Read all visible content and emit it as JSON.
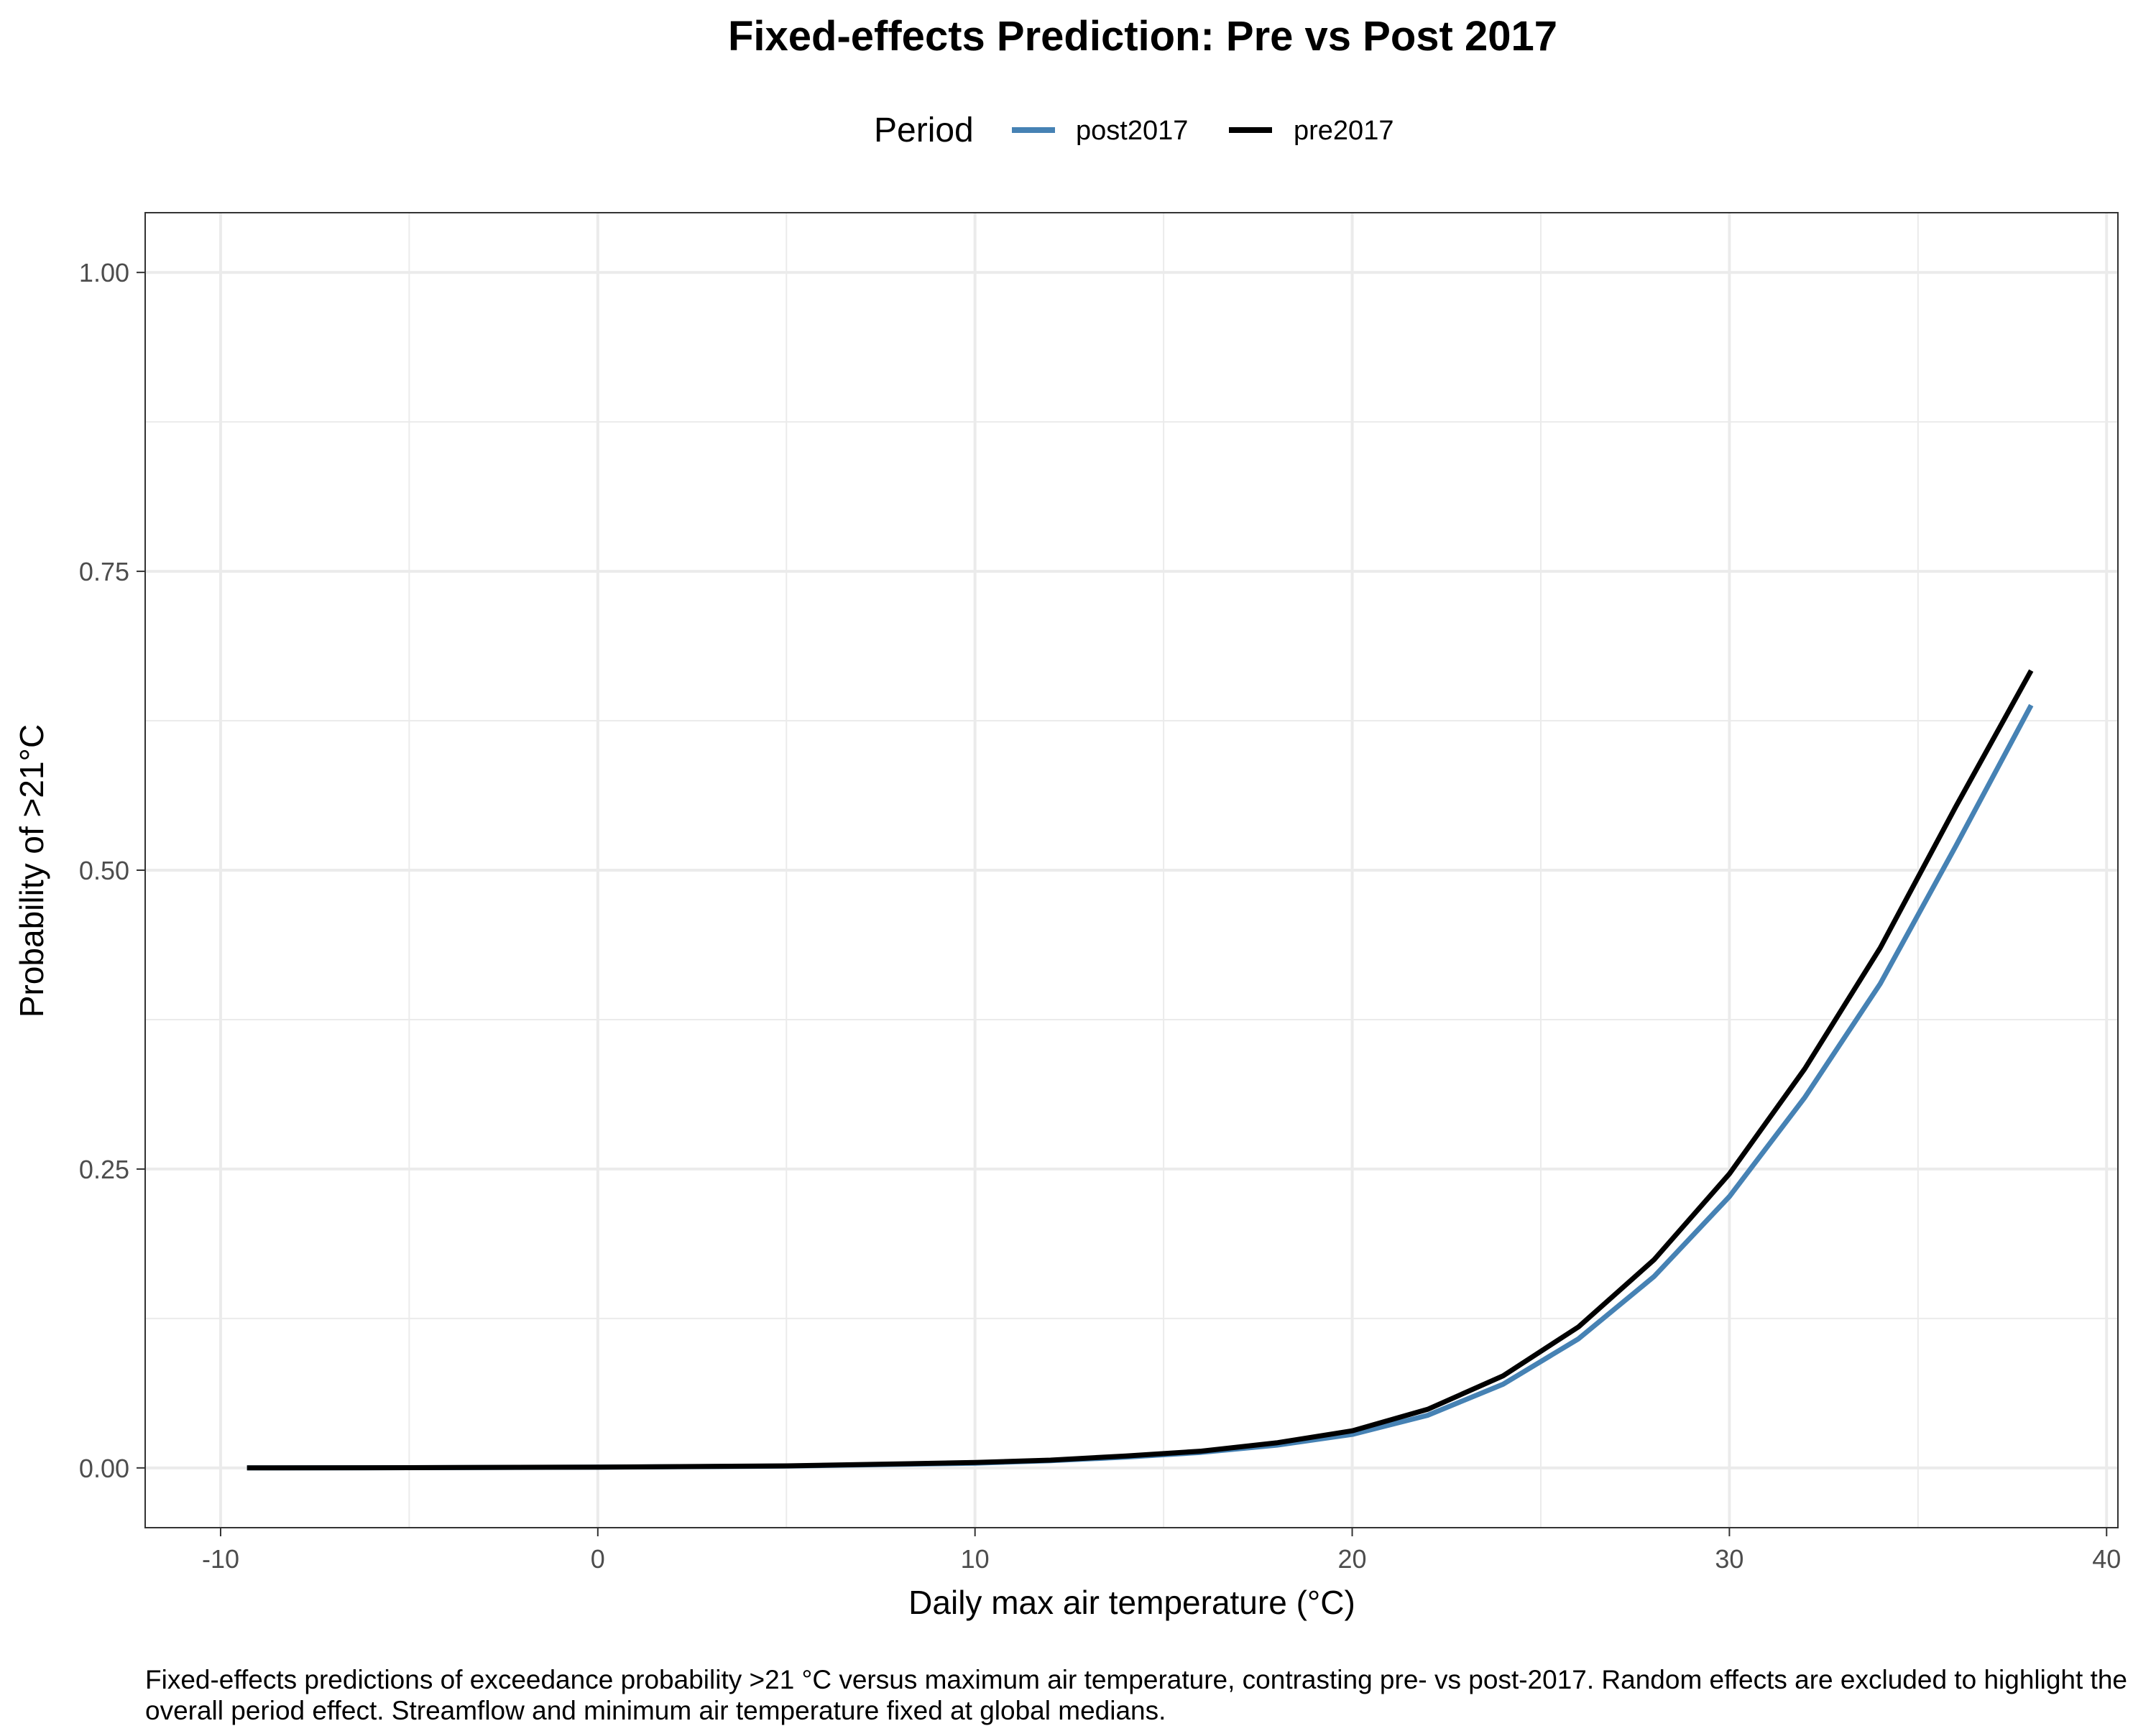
{
  "chart_data": {
    "type": "line",
    "title": "Fixed-effects Prediction: Pre vs Post 2017",
    "xlabel": "Daily max air temperature (°C)",
    "ylabel": "Probability of >21°C",
    "xlim": [
      -12,
      40.3
    ],
    "ylim": [
      -0.05,
      1.05
    ],
    "x_ticks": [
      -10,
      0,
      10,
      20,
      30,
      40
    ],
    "x_tick_labels": [
      "-10",
      "0",
      "10",
      "20",
      "30",
      "40"
    ],
    "y_ticks": [
      0,
      0.25,
      0.5,
      0.75,
      1
    ],
    "y_tick_labels": [
      "0.00",
      "0.25",
      "0.50",
      "0.75",
      "1.00"
    ],
    "grid": true,
    "legend": {
      "title": "Period",
      "placement": "top"
    },
    "series": [
      {
        "name": "post2017",
        "color": "#4682b4",
        "x": [
          -9.3,
          -5,
          0,
          5,
          10,
          12,
          14,
          16,
          18,
          20,
          22,
          24,
          26,
          28,
          30,
          32,
          34,
          36,
          38
        ],
        "y": [
          0.0,
          0.0002,
          0.0006,
          0.0015,
          0.004,
          0.006,
          0.009,
          0.013,
          0.019,
          0.028,
          0.044,
          0.07,
          0.108,
          0.16,
          0.227,
          0.31,
          0.405,
          0.52,
          0.638
        ]
      },
      {
        "name": "pre2017",
        "color": "#000000",
        "x": [
          -9.3,
          -5,
          0,
          5,
          10,
          12,
          14,
          16,
          18,
          20,
          22,
          24,
          26,
          28,
          30,
          32,
          34,
          36,
          38
        ],
        "y": [
          0.0,
          0.0002,
          0.0007,
          0.0017,
          0.0045,
          0.0065,
          0.01,
          0.014,
          0.021,
          0.031,
          0.049,
          0.077,
          0.118,
          0.174,
          0.246,
          0.334,
          0.435,
          0.553,
          0.667
        ]
      }
    ],
    "caption": "Fixed-effects predictions of exceedance probability >21 °C versus maximum air temperature, contrasting pre- vs post-2017. Random effects are excluded to highlight the overall period effect. Streamflow and minimum air temperature fixed at global medians."
  }
}
